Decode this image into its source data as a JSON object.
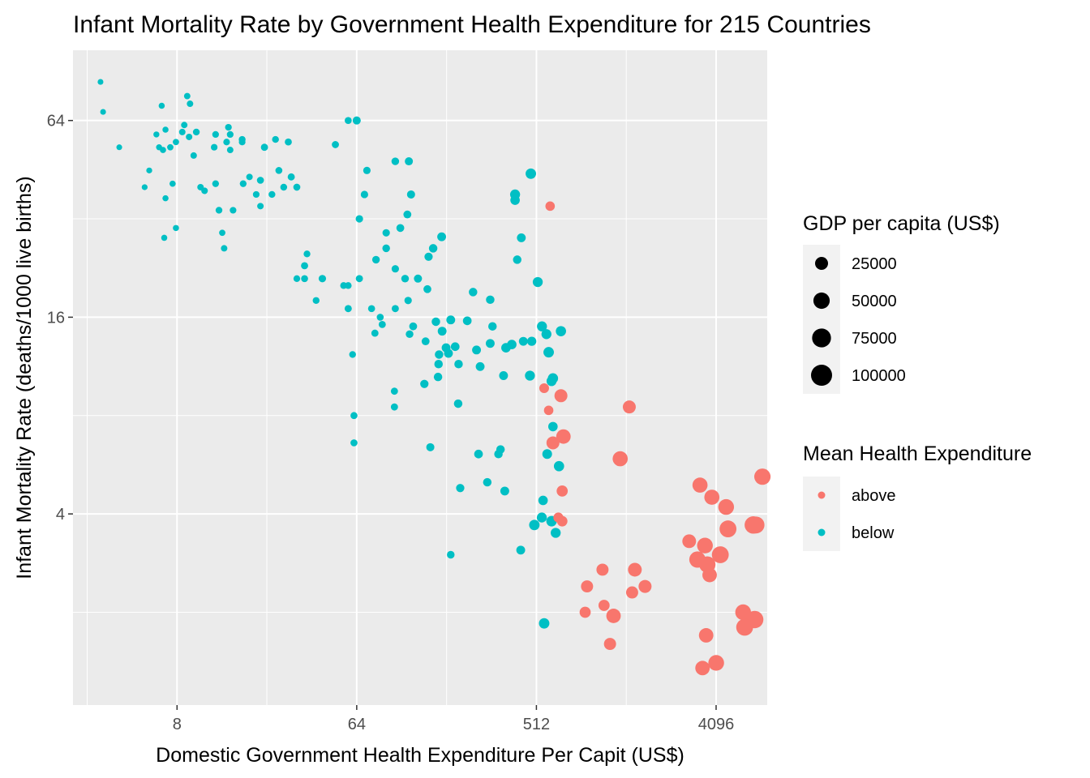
{
  "chart_data": {
    "type": "scatter",
    "title": "Infant Mortality Rate by Government Health Expenditure for 215 Countries",
    "xlabel": "Domestic Government Health Expenditure Per Capit (US$)",
    "ylabel": "Infant Mortality Rate (deaths/1000 live births)",
    "x_scale": "log2",
    "y_scale": "log2",
    "xlim": [
      2.4,
      7400
    ],
    "ylim": [
      1.04,
      105
    ],
    "x_ticks": [
      8,
      64,
      512,
      4096
    ],
    "x_tick_labels": [
      "8",
      "64",
      "512",
      "4096"
    ],
    "y_ticks": [
      4,
      16,
      64
    ],
    "y_tick_labels": [
      "4",
      "16",
      "64"
    ],
    "colors": {
      "above": "#F8766D",
      "below": "#00BFC4",
      "panel": "#EBEBEB"
    },
    "size_legend": {
      "title": "GDP per capita (US$)",
      "items": [
        {
          "label": "25000",
          "value": 25000
        },
        {
          "label": "50000",
          "value": 50000
        },
        {
          "label": "75000",
          "value": 75000
        },
        {
          "label": "100000",
          "value": 100000
        }
      ]
    },
    "color_legend": {
      "title": "Mean Health Expenditure",
      "items": [
        {
          "label": "above",
          "key": "above"
        },
        {
          "label": "below",
          "key": "below"
        }
      ]
    },
    "series": [
      {
        "name": "above",
        "points": [
          [
            600,
            35,
            8000
          ],
          [
            560,
            9.7,
            9000
          ],
          [
            590,
            8.3,
            8000
          ],
          [
            680,
            9.2,
            25000
          ],
          [
            700,
            6.9,
            35000
          ],
          [
            620,
            6.6,
            25000
          ],
          [
            1500,
            8.5,
            25000
          ],
          [
            1350,
            5.9,
            40000
          ],
          [
            690,
            4.7,
            15000
          ],
          [
            690,
            3.8,
            12000
          ],
          [
            660,
            3.9,
            10000
          ],
          [
            3400,
            4.9,
            40000
          ],
          [
            3900,
            4.5,
            40000
          ],
          [
            4600,
            4.2,
            45000
          ],
          [
            7000,
            5.2,
            50000
          ],
          [
            4700,
            3.6,
            55000
          ],
          [
            6300,
            3.7,
            60000
          ],
          [
            6500,
            3.7,
            55000
          ],
          [
            3600,
            3.2,
            45000
          ],
          [
            3000,
            3.3,
            30000
          ],
          [
            3300,
            2.9,
            50000
          ],
          [
            3700,
            2.8,
            50000
          ],
          [
            4300,
            3.0,
            55000
          ],
          [
            3800,
            2.6,
            35000
          ],
          [
            1600,
            2.7,
            30000
          ],
          [
            1800,
            2.4,
            25000
          ],
          [
            1100,
            2.7,
            20000
          ],
          [
            920,
            2.4,
            20000
          ],
          [
            1120,
            2.1,
            15000
          ],
          [
            1550,
            2.3,
            20000
          ],
          [
            900,
            2.0,
            15000
          ],
          [
            1250,
            1.95,
            35000
          ],
          [
            5600,
            2.0,
            45000
          ],
          [
            6400,
            1.9,
            60000
          ],
          [
            5700,
            1.8,
            55000
          ],
          [
            3650,
            1.7,
            35000
          ],
          [
            1200,
            1.6,
            20000
          ],
          [
            4100,
            1.4,
            45000
          ],
          [
            3500,
            1.35,
            35000
          ]
        ]
      },
      {
        "name": "below",
        "points": [
          [
            3.3,
            84,
            300
          ],
          [
            3.4,
            68,
            300
          ],
          [
            4.1,
            53,
            300
          ],
          [
            5.5,
            40,
            400
          ],
          [
            5.8,
            45,
            400
          ],
          [
            6.3,
            58,
            500
          ],
          [
            6.5,
            53,
            500
          ],
          [
            6.7,
            71,
            600
          ],
          [
            6.8,
            52,
            700
          ],
          [
            7,
            60,
            600
          ],
          [
            7,
            37,
            600
          ],
          [
            6.9,
            28,
            600
          ],
          [
            7.6,
            41,
            700
          ],
          [
            7.4,
            53,
            800
          ],
          [
            7.9,
            55,
            800
          ],
          [
            7.9,
            30,
            600
          ],
          [
            8.7,
            62,
            900
          ],
          [
            8.5,
            59,
            1000
          ],
          [
            9,
            76,
            900
          ],
          [
            9.3,
            72,
            1000
          ],
          [
            9.2,
            57,
            1000
          ],
          [
            10,
            59,
            1500
          ],
          [
            9.7,
            50,
            1000
          ],
          [
            10.5,
            40,
            1000
          ],
          [
            11,
            39,
            1100
          ],
          [
            12.5,
            58,
            1300
          ],
          [
            12.3,
            53,
            1200
          ],
          [
            12.5,
            41,
            1400
          ],
          [
            13,
            34,
            1400
          ],
          [
            13.5,
            29,
            800
          ],
          [
            13.8,
            26,
            1000
          ],
          [
            14.5,
            61,
            1300
          ],
          [
            14.2,
            55,
            1200
          ],
          [
            14.8,
            58,
            1300
          ],
          [
            14.8,
            52,
            1000
          ],
          [
            15.3,
            34,
            1200
          ],
          [
            17,
            55,
            1200
          ],
          [
            17,
            56,
            1500
          ],
          [
            17.2,
            41,
            1400
          ],
          [
            18.5,
            43,
            1000
          ],
          [
            20,
            38,
            1200
          ],
          [
            21,
            35,
            1000
          ],
          [
            21,
            42,
            1800
          ],
          [
            22,
            53,
            2000
          ],
          [
            25,
            56,
            1500
          ],
          [
            26,
            45,
            1700
          ],
          [
            24,
            38,
            1400
          ],
          [
            29,
            55,
            1800
          ],
          [
            30,
            43,
            2000
          ],
          [
            27.5,
            40,
            1500
          ],
          [
            32,
            40,
            1800
          ],
          [
            32,
            21,
            1300
          ],
          [
            35,
            21,
            1700
          ],
          [
            36,
            25,
            1400
          ],
          [
            35,
            23,
            2000
          ],
          [
            40,
            18,
            1500
          ],
          [
            43,
            21,
            2500
          ],
          [
            50,
            54,
            2000
          ],
          [
            55,
            20,
            1500
          ],
          [
            58,
            64,
            1800
          ],
          [
            58,
            20,
            1500
          ],
          [
            58,
            17,
            2000
          ],
          [
            61,
            12.3,
            1400
          ],
          [
            62,
            8,
            1800
          ],
          [
            62,
            6.6,
            1800
          ],
          [
            64,
            64,
            4000
          ],
          [
            66,
            21,
            2000
          ],
          [
            66,
            32,
            2500
          ],
          [
            70,
            38,
            2500
          ],
          [
            72,
            45,
            2500
          ],
          [
            76,
            17,
            1800
          ],
          [
            80,
            24,
            3000
          ],
          [
            79,
            14.3,
            2000
          ],
          [
            84,
            16,
            1700
          ],
          [
            86,
            15.2,
            2000
          ],
          [
            90,
            29,
            2500
          ],
          [
            90,
            26,
            3000
          ],
          [
            100,
            22.5,
            2500
          ],
          [
            100,
            17,
            2000
          ],
          [
            100,
            48,
            3000
          ],
          [
            99,
            9.5,
            2000
          ],
          [
            99,
            8.5,
            2000
          ],
          [
            106,
            30,
            3500
          ],
          [
            112,
            21,
            3000
          ],
          [
            115,
            33,
            3500
          ],
          [
            116,
            18,
            2500
          ],
          [
            118,
            14.2,
            3000
          ],
          [
            117,
            48,
            4000
          ],
          [
            120,
            38,
            4000
          ],
          [
            123,
            15,
            3500
          ],
          [
            130,
            21,
            4000
          ],
          [
            140,
            10,
            4500
          ],
          [
            145,
            19.5,
            3500
          ],
          [
            147,
            24.5,
            4500
          ],
          [
            142,
            13.5,
            3500
          ],
          [
            150,
            6.4,
            4000
          ],
          [
            160,
            15.5,
            5000
          ],
          [
            155,
            26,
            5000
          ],
          [
            166,
            12.3,
            5000
          ],
          [
            165,
            11.5,
            5000
          ],
          [
            164,
            10.5,
            5000
          ],
          [
            171,
            28.2,
            6000
          ],
          [
            172,
            14.5,
            6000
          ],
          [
            180,
            12.9,
            6000
          ],
          [
            190,
            15.7,
            6000
          ],
          [
            190,
            3,
            3000
          ],
          [
            185,
            12.4,
            6000
          ],
          [
            200,
            13,
            5500
          ],
          [
            207,
            8.7,
            5000
          ],
          [
            208,
            11.5,
            5000
          ],
          [
            212,
            4.8,
            4500
          ],
          [
            246,
            19.1,
            5000
          ],
          [
            230,
            15.6,
            5500
          ],
          [
            256,
            12.7,
            6000
          ],
          [
            267,
            11.3,
            6000
          ],
          [
            262,
            6.1,
            5500
          ],
          [
            290,
            5,
            5000
          ],
          [
            308,
            15,
            5000
          ],
          [
            300,
            18.1,
            5000
          ],
          [
            300,
            13.3,
            6000
          ],
          [
            338,
            6.3,
            5000
          ],
          [
            330,
            6.1,
            5000
          ],
          [
            350,
            10.6,
            6000
          ],
          [
            355,
            4.7,
            6000
          ],
          [
            400,
            38,
            10000
          ],
          [
            400,
            36.5,
            8000
          ],
          [
            427,
            3.1,
            6000
          ],
          [
            360,
            12.9,
            8000
          ],
          [
            385,
            13.2,
            8000
          ],
          [
            480,
            44,
            12000
          ],
          [
            485,
            13.5,
            7000
          ],
          [
            410,
            24,
            5000
          ],
          [
            430,
            28,
            6000
          ],
          [
            560,
            1.85,
            12000
          ],
          [
            545,
            3.9,
            10000
          ],
          [
            553,
            4.4,
            8000
          ],
          [
            475,
            10.6,
            10000
          ],
          [
            440,
            13.5,
            6000
          ],
          [
            500,
            3.7,
            12000
          ],
          [
            546,
            15,
            10000
          ],
          [
            575,
            14.2,
            10000
          ],
          [
            590,
            12.5,
            12000
          ],
          [
            620,
            10.4,
            11000
          ],
          [
            520,
            20.5,
            10000
          ],
          [
            620,
            7.4,
            8000
          ],
          [
            640,
            3.5,
            10000
          ],
          [
            665,
            5.6,
            11000
          ],
          [
            680,
            14.5,
            11000
          ],
          [
            610,
            3.8,
            12000
          ],
          [
            610,
            10.2,
            10000
          ],
          [
            580,
            6.1,
            9000
          ]
        ]
      }
    ]
  }
}
